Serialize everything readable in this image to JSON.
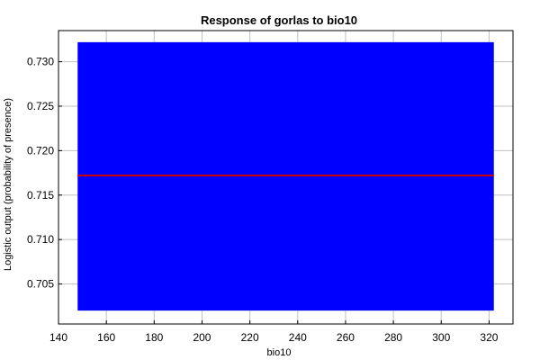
{
  "chart_data": {
    "type": "area",
    "title": "Response of gorlas to bio10",
    "xlabel": "bio10",
    "ylabel": "Logistic output (probability of presence)",
    "xlim": [
      140,
      330
    ],
    "ylim": [
      0.7005,
      0.7335
    ],
    "xticks": [
      140,
      160,
      180,
      200,
      220,
      240,
      260,
      280,
      300,
      320
    ],
    "yticks": [
      0.705,
      0.71,
      0.715,
      0.72,
      0.725,
      0.73
    ],
    "ytick_labels": [
      "0.705",
      "0.710",
      "0.715",
      "0.720",
      "0.725",
      "0.730"
    ],
    "grid": true,
    "series": [
      {
        "role": "band",
        "x": [
          148,
          322
        ],
        "lower": [
          0.702,
          0.702
        ],
        "upper": [
          0.7322,
          0.7322
        ],
        "color": "#0000ff"
      },
      {
        "role": "line",
        "x": [
          148,
          322
        ],
        "y": [
          0.7172,
          0.7172
        ],
        "color": "#cc0000"
      }
    ]
  }
}
